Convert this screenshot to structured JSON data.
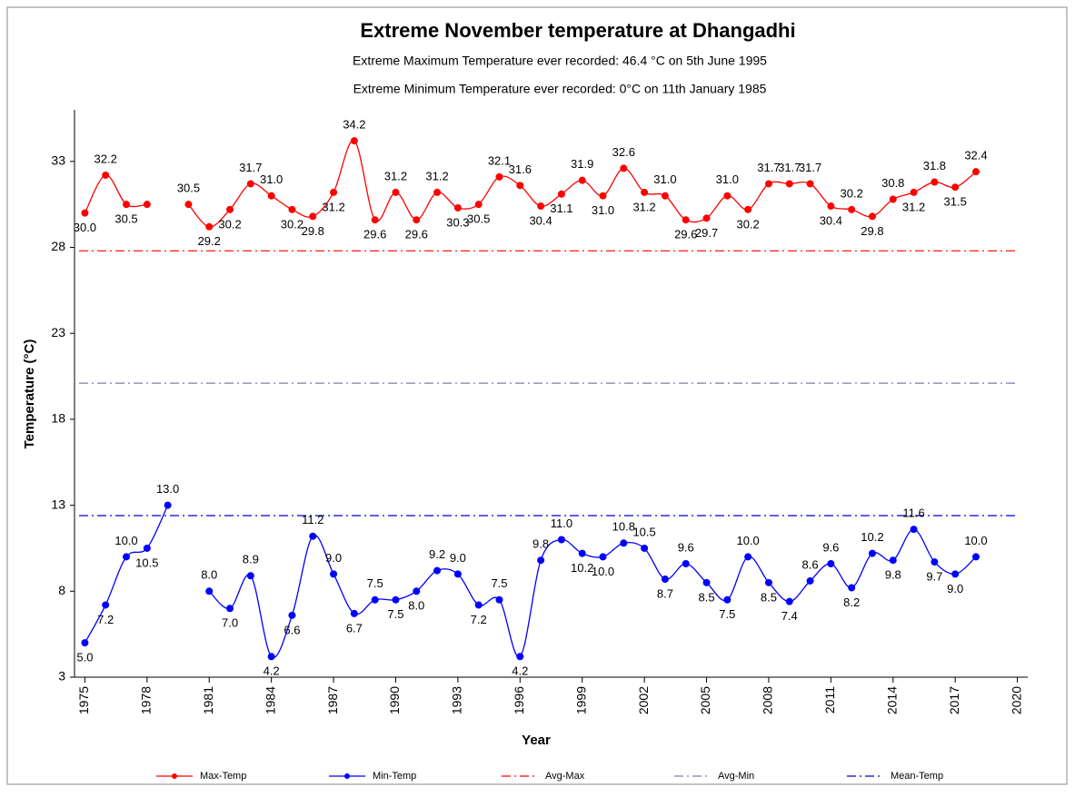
{
  "chart_data": {
    "type": "line",
    "title": "Extreme November temperature at Dhangadhi",
    "subtitles": [
      "Extreme Maximum Temperature ever recorded: 46.4 °C on 5th June 1995",
      "Extreme Minimum Temperature ever recorded: 0°C on 11th January 1985"
    ],
    "x_label": "Year",
    "y_label": "Temperature (°C)",
    "x": [
      1975,
      1976,
      1977,
      1978,
      1979,
      1980,
      1981,
      1982,
      1983,
      1984,
      1985,
      1986,
      1987,
      1988,
      1989,
      1990,
      1991,
      1992,
      1993,
      1994,
      1995,
      1996,
      1997,
      1998,
      1999,
      2000,
      2001,
      2002,
      2003,
      2004,
      2005,
      2006,
      2007,
      2008,
      2009,
      2010,
      2011,
      2012,
      2013,
      2014,
      2015,
      2016,
      2017,
      2018
    ],
    "series": [
      {
        "name": "Max-Temp",
        "color": "#ff0000",
        "values": [
          30.0,
          32.2,
          30.5,
          30.5,
          null,
          30.5,
          29.2,
          30.2,
          31.7,
          31.0,
          30.2,
          29.8,
          31.2,
          34.2,
          29.6,
          31.2,
          29.6,
          31.2,
          30.3,
          30.5,
          32.1,
          31.6,
          30.4,
          31.1,
          31.9,
          31.0,
          32.6,
          31.2,
          31.0,
          29.6,
          29.7,
          31.0,
          30.2,
          31.7,
          31.7,
          31.7,
          30.4,
          30.2,
          29.8,
          30.8,
          31.2,
          31.8,
          31.5,
          32.4
        ],
        "value_labels": [
          "30.0",
          "32.2",
          "30.5",
          null,
          null,
          "30.5",
          "29.2",
          "30.2",
          "31.7",
          "31.0",
          "30.2",
          "29.8",
          "31.2",
          "34.2",
          "29.6",
          "31.2",
          "29.6",
          "31.2",
          "30.3",
          "30.5",
          "32.1",
          "31.6",
          "30.4",
          "31.1",
          "31.9",
          "31.0",
          "32.6",
          "31.2",
          "31.0",
          "29.6",
          "29.7",
          "31.0",
          "30.2",
          "31.7",
          "31.7",
          "31.7",
          "30.4",
          "30.2",
          "29.8",
          "30.8",
          "31.2",
          "31.8",
          "31.5",
          "32.4"
        ]
      },
      {
        "name": "Min-Temp",
        "color": "#0000ff",
        "values": [
          5.0,
          7.2,
          10.0,
          10.5,
          13.0,
          null,
          8.0,
          7.0,
          8.9,
          4.2,
          6.6,
          11.2,
          9.0,
          6.7,
          7.5,
          7.5,
          8.0,
          9.2,
          9.0,
          7.2,
          7.5,
          4.2,
          9.8,
          11.0,
          10.2,
          10.0,
          10.8,
          10.5,
          8.7,
          9.6,
          8.5,
          7.5,
          10.0,
          8.5,
          7.4,
          8.6,
          9.6,
          8.2,
          10.2,
          9.8,
          11.6,
          9.7,
          9.0,
          10.0
        ],
        "value_labels": [
          "5.0",
          "7.2",
          "10.0",
          "10.5",
          "13.0",
          null,
          "8.0",
          "7.0",
          "8.9",
          "4.2",
          "6.6",
          "11.2",
          "9.0",
          "6.7",
          "7.5",
          "7.5",
          "8.0",
          "9.2",
          "9.0",
          "7.2",
          "7.5",
          "4.2",
          "9.8",
          "11.0",
          "10.2",
          "10.0",
          "10.8",
          "10.5",
          "8.7",
          "9.6",
          "8.5",
          "7.5",
          "10.0",
          "8.5",
          "7.4",
          "8.6",
          "9.6",
          "8.2",
          "10.2",
          "9.8",
          "11.6",
          "9.7",
          "9.0",
          "10.0"
        ]
      }
    ],
    "reference_lines": [
      {
        "name": "Avg-Max",
        "color": "#ff0000",
        "value": 27.8
      },
      {
        "name": "Avg-Min",
        "color": "#7f7f9f",
        "value": 20.1
      },
      {
        "name": "Mean-Temp",
        "color": "#0000cc",
        "value": 12.4
      }
    ],
    "xlim": [
      1974.5,
      2020.5
    ],
    "xticks": [
      1975,
      1978,
      1981,
      1984,
      1987,
      1990,
      1993,
      1996,
      1999,
      2002,
      2005,
      2008,
      2011,
      2014,
      2017,
      2020
    ],
    "ylim": [
      3,
      36
    ],
    "yticks": [
      3,
      8,
      13,
      18,
      23,
      28,
      33
    ],
    "legend": "bottom"
  }
}
